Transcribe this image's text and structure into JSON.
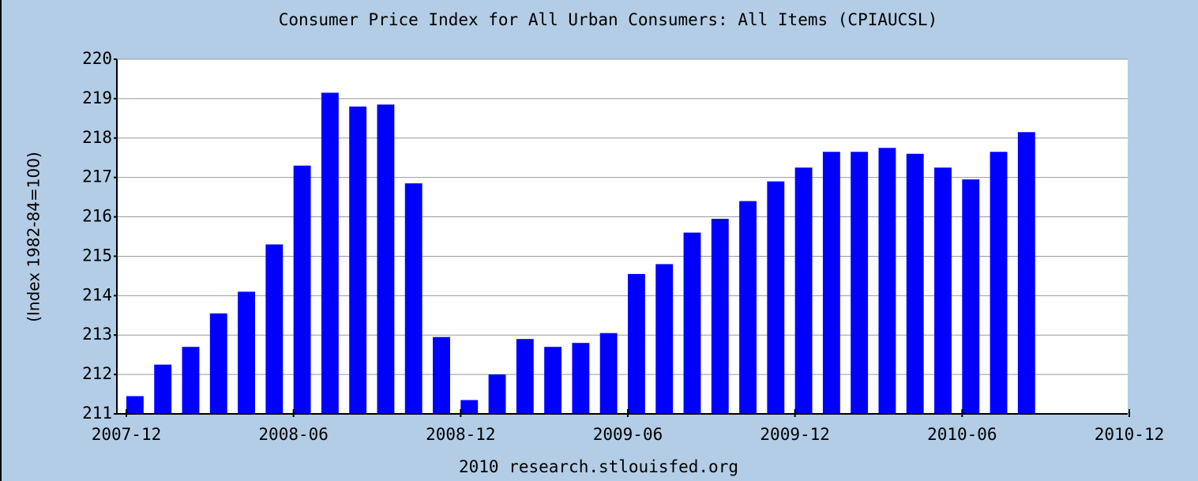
{
  "chart_data": {
    "type": "bar",
    "title": "Consumer Price Index for All Urban Consumers: All Items (CPIAUCSL)",
    "ylabel": "(Index 1982-84=100)",
    "footer": "2010 research.stlouisfed.org",
    "x": [
      "2007-12",
      "2008-01",
      "2008-02",
      "2008-03",
      "2008-04",
      "2008-05",
      "2008-06",
      "2008-07",
      "2008-08",
      "2008-09",
      "2008-10",
      "2008-11",
      "2008-12",
      "2009-01",
      "2009-02",
      "2009-03",
      "2009-04",
      "2009-05",
      "2009-06",
      "2009-07",
      "2009-08",
      "2009-09",
      "2009-10",
      "2009-11",
      "2009-12",
      "2010-01",
      "2010-02",
      "2010-03",
      "2010-04",
      "2010-05",
      "2010-06",
      "2010-07",
      "2010-08"
    ],
    "values": [
      211.45,
      212.25,
      212.7,
      213.55,
      214.1,
      215.3,
      217.3,
      219.15,
      218.8,
      218.85,
      216.85,
      212.95,
      211.35,
      212.0,
      212.9,
      212.7,
      212.8,
      213.05,
      214.55,
      214.8,
      215.6,
      215.95,
      216.4,
      216.9,
      217.25,
      217.65,
      217.65,
      217.75,
      217.6,
      217.25,
      216.95,
      217.65,
      218.15
    ],
    "color": "#0000ff",
    "xlim": [
      "2007-12",
      "2010-12"
    ],
    "xticks": [
      "2007-12",
      "2008-06",
      "2008-12",
      "2009-06",
      "2009-12",
      "2010-06",
      "2010-12"
    ],
    "ylim": [
      211,
      220
    ],
    "yticks": [
      211,
      212,
      213,
      214,
      215,
      216,
      217,
      218,
      219,
      220
    ],
    "grid": true
  }
}
